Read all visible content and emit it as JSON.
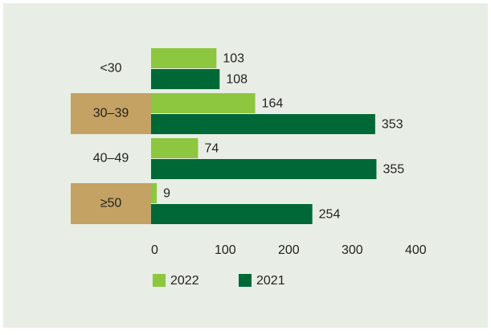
{
  "chart_data": {
    "type": "bar",
    "orientation": "horizontal",
    "categories": [
      "<30",
      "30–39",
      "40–49",
      "≥50"
    ],
    "series": [
      {
        "name": "2022",
        "color": "#8dc63f",
        "values": [
          103,
          164,
          74,
          9
        ]
      },
      {
        "name": "2021",
        "color": "#006837",
        "values": [
          108,
          353,
          355,
          254
        ]
      }
    ],
    "xlim": [
      0,
      400
    ],
    "xticks": [
      0,
      100,
      200,
      300,
      400
    ],
    "grid": false
  }
}
